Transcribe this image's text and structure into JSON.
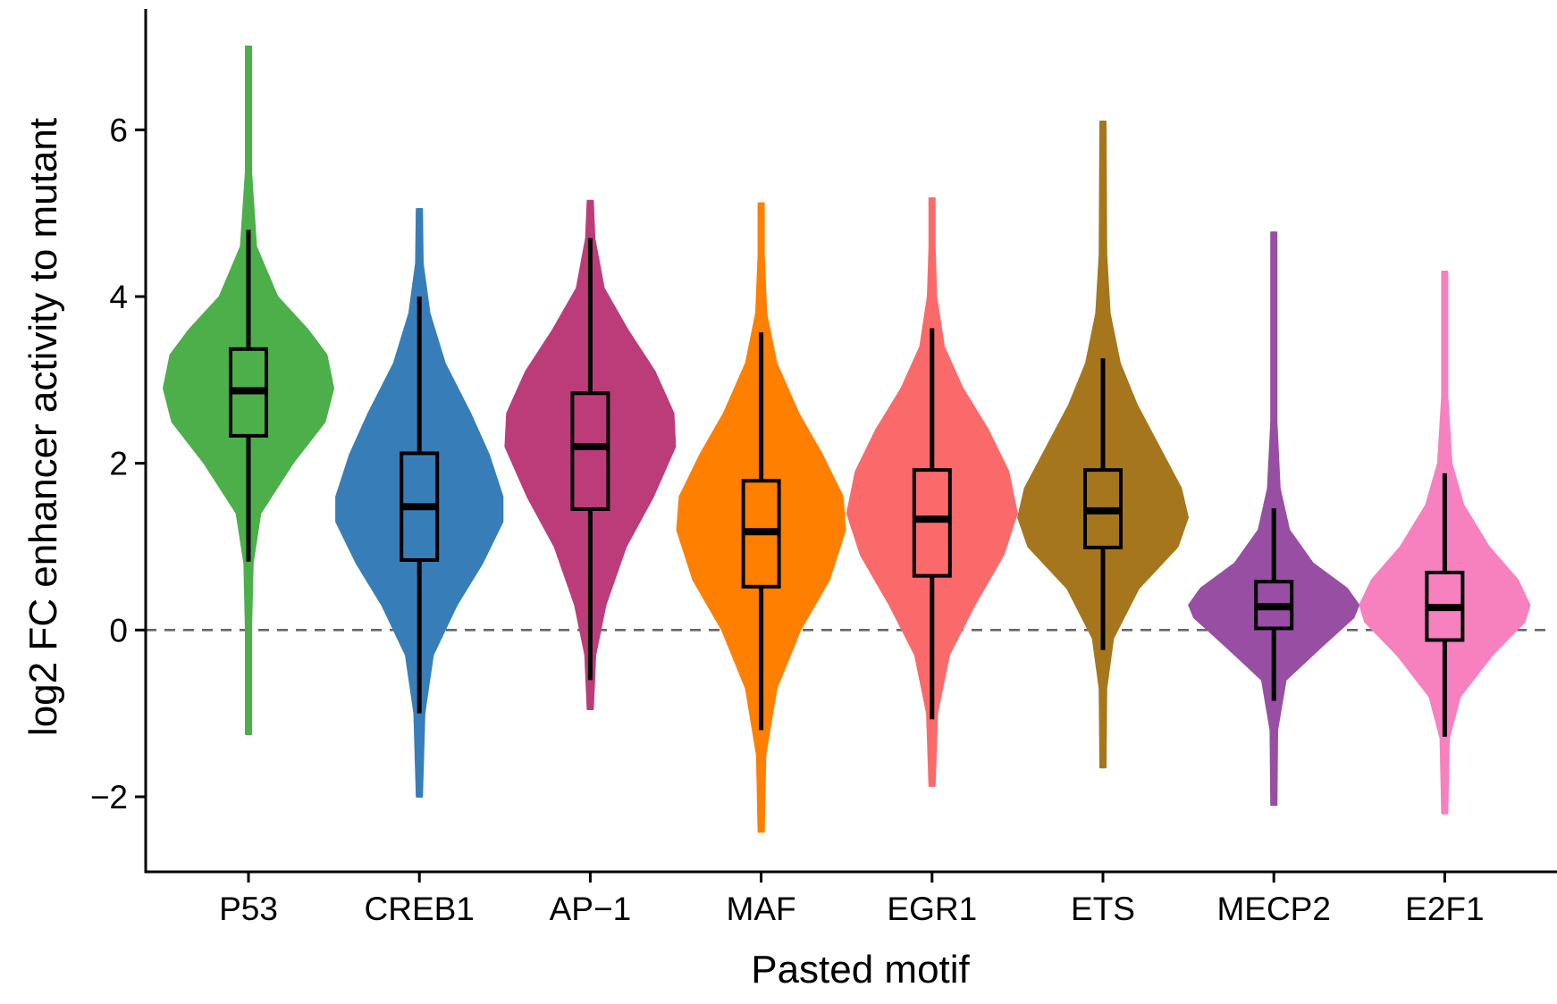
{
  "chart_data": {
    "type": "violin",
    "xlabel": "Pasted motif",
    "ylabel": "log2 FC enhancer activity to mutant",
    "ylim": [
      -2.9,
      7.45
    ],
    "yticks": [
      -2,
      0,
      2,
      4,
      6
    ],
    "ytick_labels": [
      "−2",
      "0",
      "2",
      "4",
      "6"
    ],
    "reference_line": {
      "y": 0,
      "style": "dashed",
      "color": "#666666"
    },
    "grid": false,
    "categories": [
      "P53",
      "CREB1",
      "AP−1",
      "MAF",
      "EGR1",
      "ETS",
      "MECP2",
      "E2F1"
    ],
    "series": [
      {
        "color": "#4DAF4A",
        "median": 2.87,
        "q1": 2.33,
        "q3": 3.37,
        "whisker_low": 0.82,
        "whisker_high": 4.8,
        "min": -1.25,
        "max": 7.0,
        "density": [
          [
            -1.25,
            0.02
          ],
          [
            0.0,
            0.03
          ],
          [
            0.8,
            0.05
          ],
          [
            1.4,
            0.14
          ],
          [
            2.0,
            0.52
          ],
          [
            2.5,
            0.9
          ],
          [
            2.9,
            1.0
          ],
          [
            3.3,
            0.92
          ],
          [
            3.6,
            0.7
          ],
          [
            4.0,
            0.34
          ],
          [
            4.6,
            0.09
          ],
          [
            5.5,
            0.03
          ],
          [
            7.0,
            0.02
          ]
        ]
      },
      {
        "color": "#377EB8",
        "median": 1.48,
        "q1": 0.84,
        "q3": 2.12,
        "whisker_low": -1.0,
        "whisker_high": 4.0,
        "min": -2.0,
        "max": 5.05,
        "density": [
          [
            -2.0,
            0.02
          ],
          [
            -1.0,
            0.06
          ],
          [
            -0.3,
            0.16
          ],
          [
            0.3,
            0.44
          ],
          [
            0.8,
            0.74
          ],
          [
            1.3,
            0.98
          ],
          [
            1.6,
            0.98
          ],
          [
            2.1,
            0.82
          ],
          [
            2.6,
            0.6
          ],
          [
            3.2,
            0.3
          ],
          [
            3.8,
            0.12
          ],
          [
            4.4,
            0.04
          ],
          [
            5.05,
            0.02
          ]
        ]
      },
      {
        "color": "#BC3C7A",
        "median": 2.2,
        "q1": 1.45,
        "q3": 2.84,
        "whisker_low": -0.6,
        "whisker_high": 4.7,
        "min": -0.95,
        "max": 5.15,
        "density": [
          [
            -0.95,
            0.03
          ],
          [
            -0.3,
            0.06
          ],
          [
            0.3,
            0.18
          ],
          [
            1.0,
            0.42
          ],
          [
            1.6,
            0.74
          ],
          [
            2.2,
            1.0
          ],
          [
            2.6,
            0.98
          ],
          [
            3.1,
            0.76
          ],
          [
            3.6,
            0.44
          ],
          [
            4.1,
            0.16
          ],
          [
            4.7,
            0.05
          ],
          [
            5.15,
            0.03
          ]
        ]
      },
      {
        "color": "#FF7F00",
        "median": 1.18,
        "q1": 0.52,
        "q3": 1.79,
        "whisker_low": -1.2,
        "whisker_high": 3.57,
        "min": -2.42,
        "max": 5.12,
        "density": [
          [
            -2.42,
            0.02
          ],
          [
            -1.5,
            0.05
          ],
          [
            -0.7,
            0.18
          ],
          [
            0.0,
            0.46
          ],
          [
            0.6,
            0.8
          ],
          [
            1.2,
            0.99
          ],
          [
            1.6,
            0.96
          ],
          [
            2.1,
            0.72
          ],
          [
            2.6,
            0.44
          ],
          [
            3.2,
            0.18
          ],
          [
            3.8,
            0.06
          ],
          [
            4.5,
            0.03
          ],
          [
            5.12,
            0.02
          ]
        ]
      },
      {
        "color": "#FB6A6A",
        "median": 1.33,
        "q1": 0.65,
        "q3": 1.92,
        "whisker_low": -1.07,
        "whisker_high": 3.62,
        "min": -1.87,
        "max": 5.18,
        "density": [
          [
            -1.87,
            0.02
          ],
          [
            -1.0,
            0.06
          ],
          [
            -0.3,
            0.2
          ],
          [
            0.3,
            0.5
          ],
          [
            0.9,
            0.84
          ],
          [
            1.4,
            1.0
          ],
          [
            1.9,
            0.9
          ],
          [
            2.4,
            0.66
          ],
          [
            2.9,
            0.36
          ],
          [
            3.4,
            0.14
          ],
          [
            4.0,
            0.05
          ],
          [
            4.6,
            0.03
          ],
          [
            5.18,
            0.02
          ]
        ]
      },
      {
        "color": "#A6761D",
        "median": 1.43,
        "q1": 0.99,
        "q3": 1.92,
        "whisker_low": -0.24,
        "whisker_high": 3.26,
        "min": -1.65,
        "max": 6.1,
        "density": [
          [
            -1.65,
            0.02
          ],
          [
            -0.7,
            0.04
          ],
          [
            -0.1,
            0.12
          ],
          [
            0.5,
            0.42
          ],
          [
            1.0,
            0.88
          ],
          [
            1.35,
            1.0
          ],
          [
            1.7,
            0.92
          ],
          [
            2.2,
            0.66
          ],
          [
            2.7,
            0.4
          ],
          [
            3.2,
            0.2
          ],
          [
            3.8,
            0.08
          ],
          [
            4.5,
            0.04
          ],
          [
            6.1,
            0.02
          ]
        ]
      },
      {
        "color": "#984EA3",
        "median": 0.28,
        "q1": 0.02,
        "q3": 0.58,
        "whisker_low": -0.85,
        "whisker_high": 1.46,
        "min": -2.1,
        "max": 4.77,
        "density": [
          [
            -2.1,
            0.02
          ],
          [
            -1.2,
            0.04
          ],
          [
            -0.6,
            0.14
          ],
          [
            -0.2,
            0.56
          ],
          [
            0.15,
            0.94
          ],
          [
            0.3,
            1.0
          ],
          [
            0.5,
            0.86
          ],
          [
            0.8,
            0.46
          ],
          [
            1.2,
            0.18
          ],
          [
            1.7,
            0.07
          ],
          [
            2.5,
            0.03
          ],
          [
            3.5,
            0.02
          ],
          [
            4.77,
            0.02
          ]
        ]
      },
      {
        "color": "#F781BF",
        "median": 0.27,
        "q1": -0.12,
        "q3": 0.69,
        "whisker_low": -1.28,
        "whisker_high": 1.88,
        "min": -2.2,
        "max": 4.3,
        "density": [
          [
            -2.2,
            0.02
          ],
          [
            -1.3,
            0.05
          ],
          [
            -0.8,
            0.18
          ],
          [
            -0.3,
            0.56
          ],
          [
            0.1,
            0.94
          ],
          [
            0.3,
            1.0
          ],
          [
            0.6,
            0.86
          ],
          [
            1.0,
            0.52
          ],
          [
            1.5,
            0.22
          ],
          [
            2.0,
            0.08
          ],
          [
            2.8,
            0.03
          ],
          [
            3.6,
            0.02
          ],
          [
            4.3,
            0.02
          ]
        ]
      }
    ]
  }
}
